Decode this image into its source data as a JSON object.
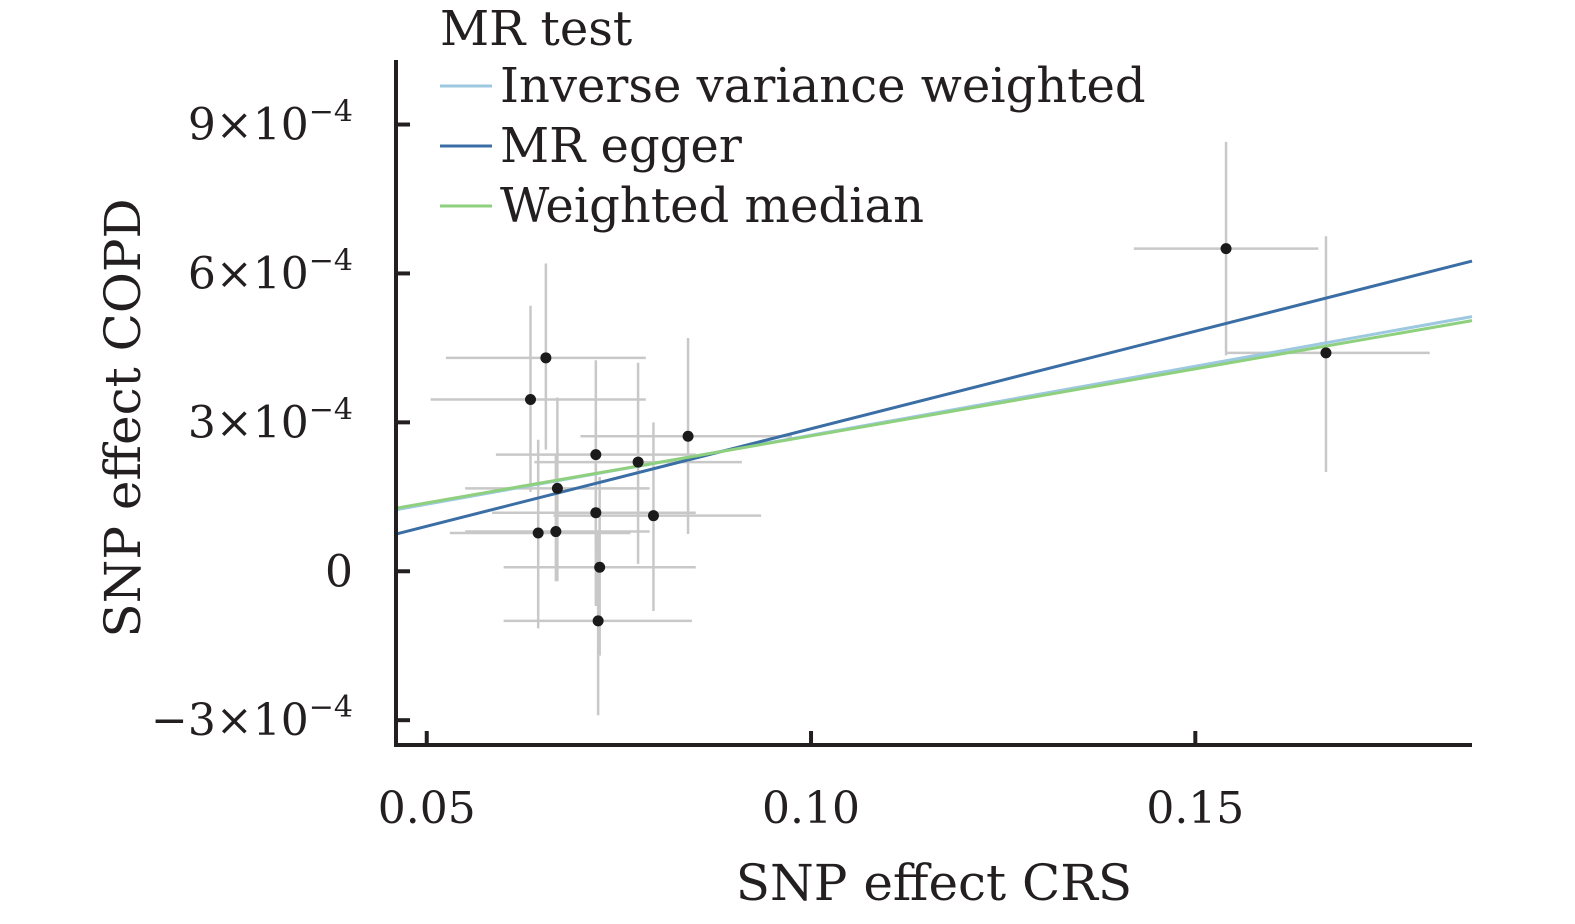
{
  "chart_data": {
    "type": "scatter",
    "xlabel": "SNP effect CRS",
    "ylabel": "SNP effect COPD",
    "xlim": [
      0.046,
      0.186
    ],
    "ylim": [
      -0.00035,
      0.00103
    ],
    "xticks": [
      {
        "value": 0.05,
        "label": "0.05"
      },
      {
        "value": 0.1,
        "label": "0.10"
      },
      {
        "value": 0.15,
        "label": "0.15"
      }
    ],
    "yticks": [
      {
        "value": -0.0003,
        "mant": "−3×10",
        "exp": "−4"
      },
      {
        "value": 0.0,
        "mant": "0",
        "exp": ""
      },
      {
        "value": 0.0003,
        "mant": "3×10",
        "exp": "−4"
      },
      {
        "value": 0.0006,
        "mant": "6×10",
        "exp": "−4"
      },
      {
        "value": 0.0009,
        "mant": "9×10",
        "exp": "−4"
      }
    ],
    "legend": {
      "title": "MR test",
      "placement": "top-left",
      "entries": [
        {
          "name": "Inverse variance weighted",
          "color": "#9cc8e0"
        },
        {
          "name": "MR egger",
          "color": "#3b6ea5"
        },
        {
          "name": "Weighted median",
          "color": "#8fd07e"
        }
      ]
    },
    "lines": [
      {
        "name": "Inverse variance weighted",
        "color": "#9cc8e0",
        "x": [
          0.046,
          0.186
        ],
        "y": [
          0.000124,
          0.000513
        ]
      },
      {
        "name": "MR egger",
        "color": "#3b6ea5",
        "x": [
          0.046,
          0.186
        ],
        "y": [
          7.5e-05,
          0.000625
        ]
      },
      {
        "name": "Weighted median",
        "color": "#8fd07e",
        "x": [
          0.046,
          0.186
        ],
        "y": [
          0.000127,
          0.000505
        ]
      }
    ],
    "points": [
      {
        "x": 0.0635,
        "y": 0.000346,
        "xmin": 0.0505,
        "xmax": 0.0785,
        "ymin": 0.00016,
        "ymax": 0.000535
      },
      {
        "x": 0.0655,
        "y": 0.00043,
        "xmin": 0.0525,
        "xmax": 0.0785,
        "ymin": 0.000245,
        "ymax": 0.00062
      },
      {
        "x": 0.0645,
        "y": 7.7e-05,
        "xmin": 0.053,
        "xmax": 0.0765,
        "ymin": -0.000115,
        "ymax": 0.000265
      },
      {
        "x": 0.067,
        "y": 0.000167,
        "xmin": 0.055,
        "xmax": 0.079,
        "ymin": -2e-05,
        "ymax": 0.00035
      },
      {
        "x": 0.0668,
        "y": 8e-05,
        "xmin": 0.055,
        "xmax": 0.079,
        "ymin": -2e-05,
        "ymax": 0.000235
      },
      {
        "x": 0.072,
        "y": 0.000235,
        "xmin": 0.059,
        "xmax": 0.085,
        "ymin": 5e-05,
        "ymax": 0.000425
      },
      {
        "x": 0.072,
        "y": 0.000118,
        "xmin": 0.0585,
        "xmax": 0.085,
        "ymin": -7e-05,
        "ymax": 0.000305
      },
      {
        "x": 0.0725,
        "y": 8e-06,
        "xmin": 0.06,
        "xmax": 0.085,
        "ymin": -0.00017,
        "ymax": 0.00019
      },
      {
        "x": 0.0723,
        "y": -0.0001,
        "xmin": 0.06,
        "xmax": 0.0845,
        "ymin": -0.00029,
        "ymax": 8e-05
      },
      {
        "x": 0.0775,
        "y": 0.00022,
        "xmin": 0.064,
        "xmax": 0.091,
        "ymin": 1.5e-05,
        "ymax": 0.00042
      },
      {
        "x": 0.0795,
        "y": 0.000112,
        "xmin": 0.0665,
        "xmax": 0.0935,
        "ymin": -8e-05,
        "ymax": 0.0003
      },
      {
        "x": 0.084,
        "y": 0.000272,
        "xmin": 0.07,
        "xmax": 0.0975,
        "ymin": 7.5e-05,
        "ymax": 0.00047
      },
      {
        "x": 0.154,
        "y": 0.00065,
        "xmin": 0.142,
        "xmax": 0.166,
        "ymin": 0.000435,
        "ymax": 0.000865
      },
      {
        "x": 0.167,
        "y": 0.00044,
        "xmin": 0.154,
        "xmax": 0.1805,
        "ymin": 0.0002,
        "ymax": 0.000675
      }
    ]
  }
}
